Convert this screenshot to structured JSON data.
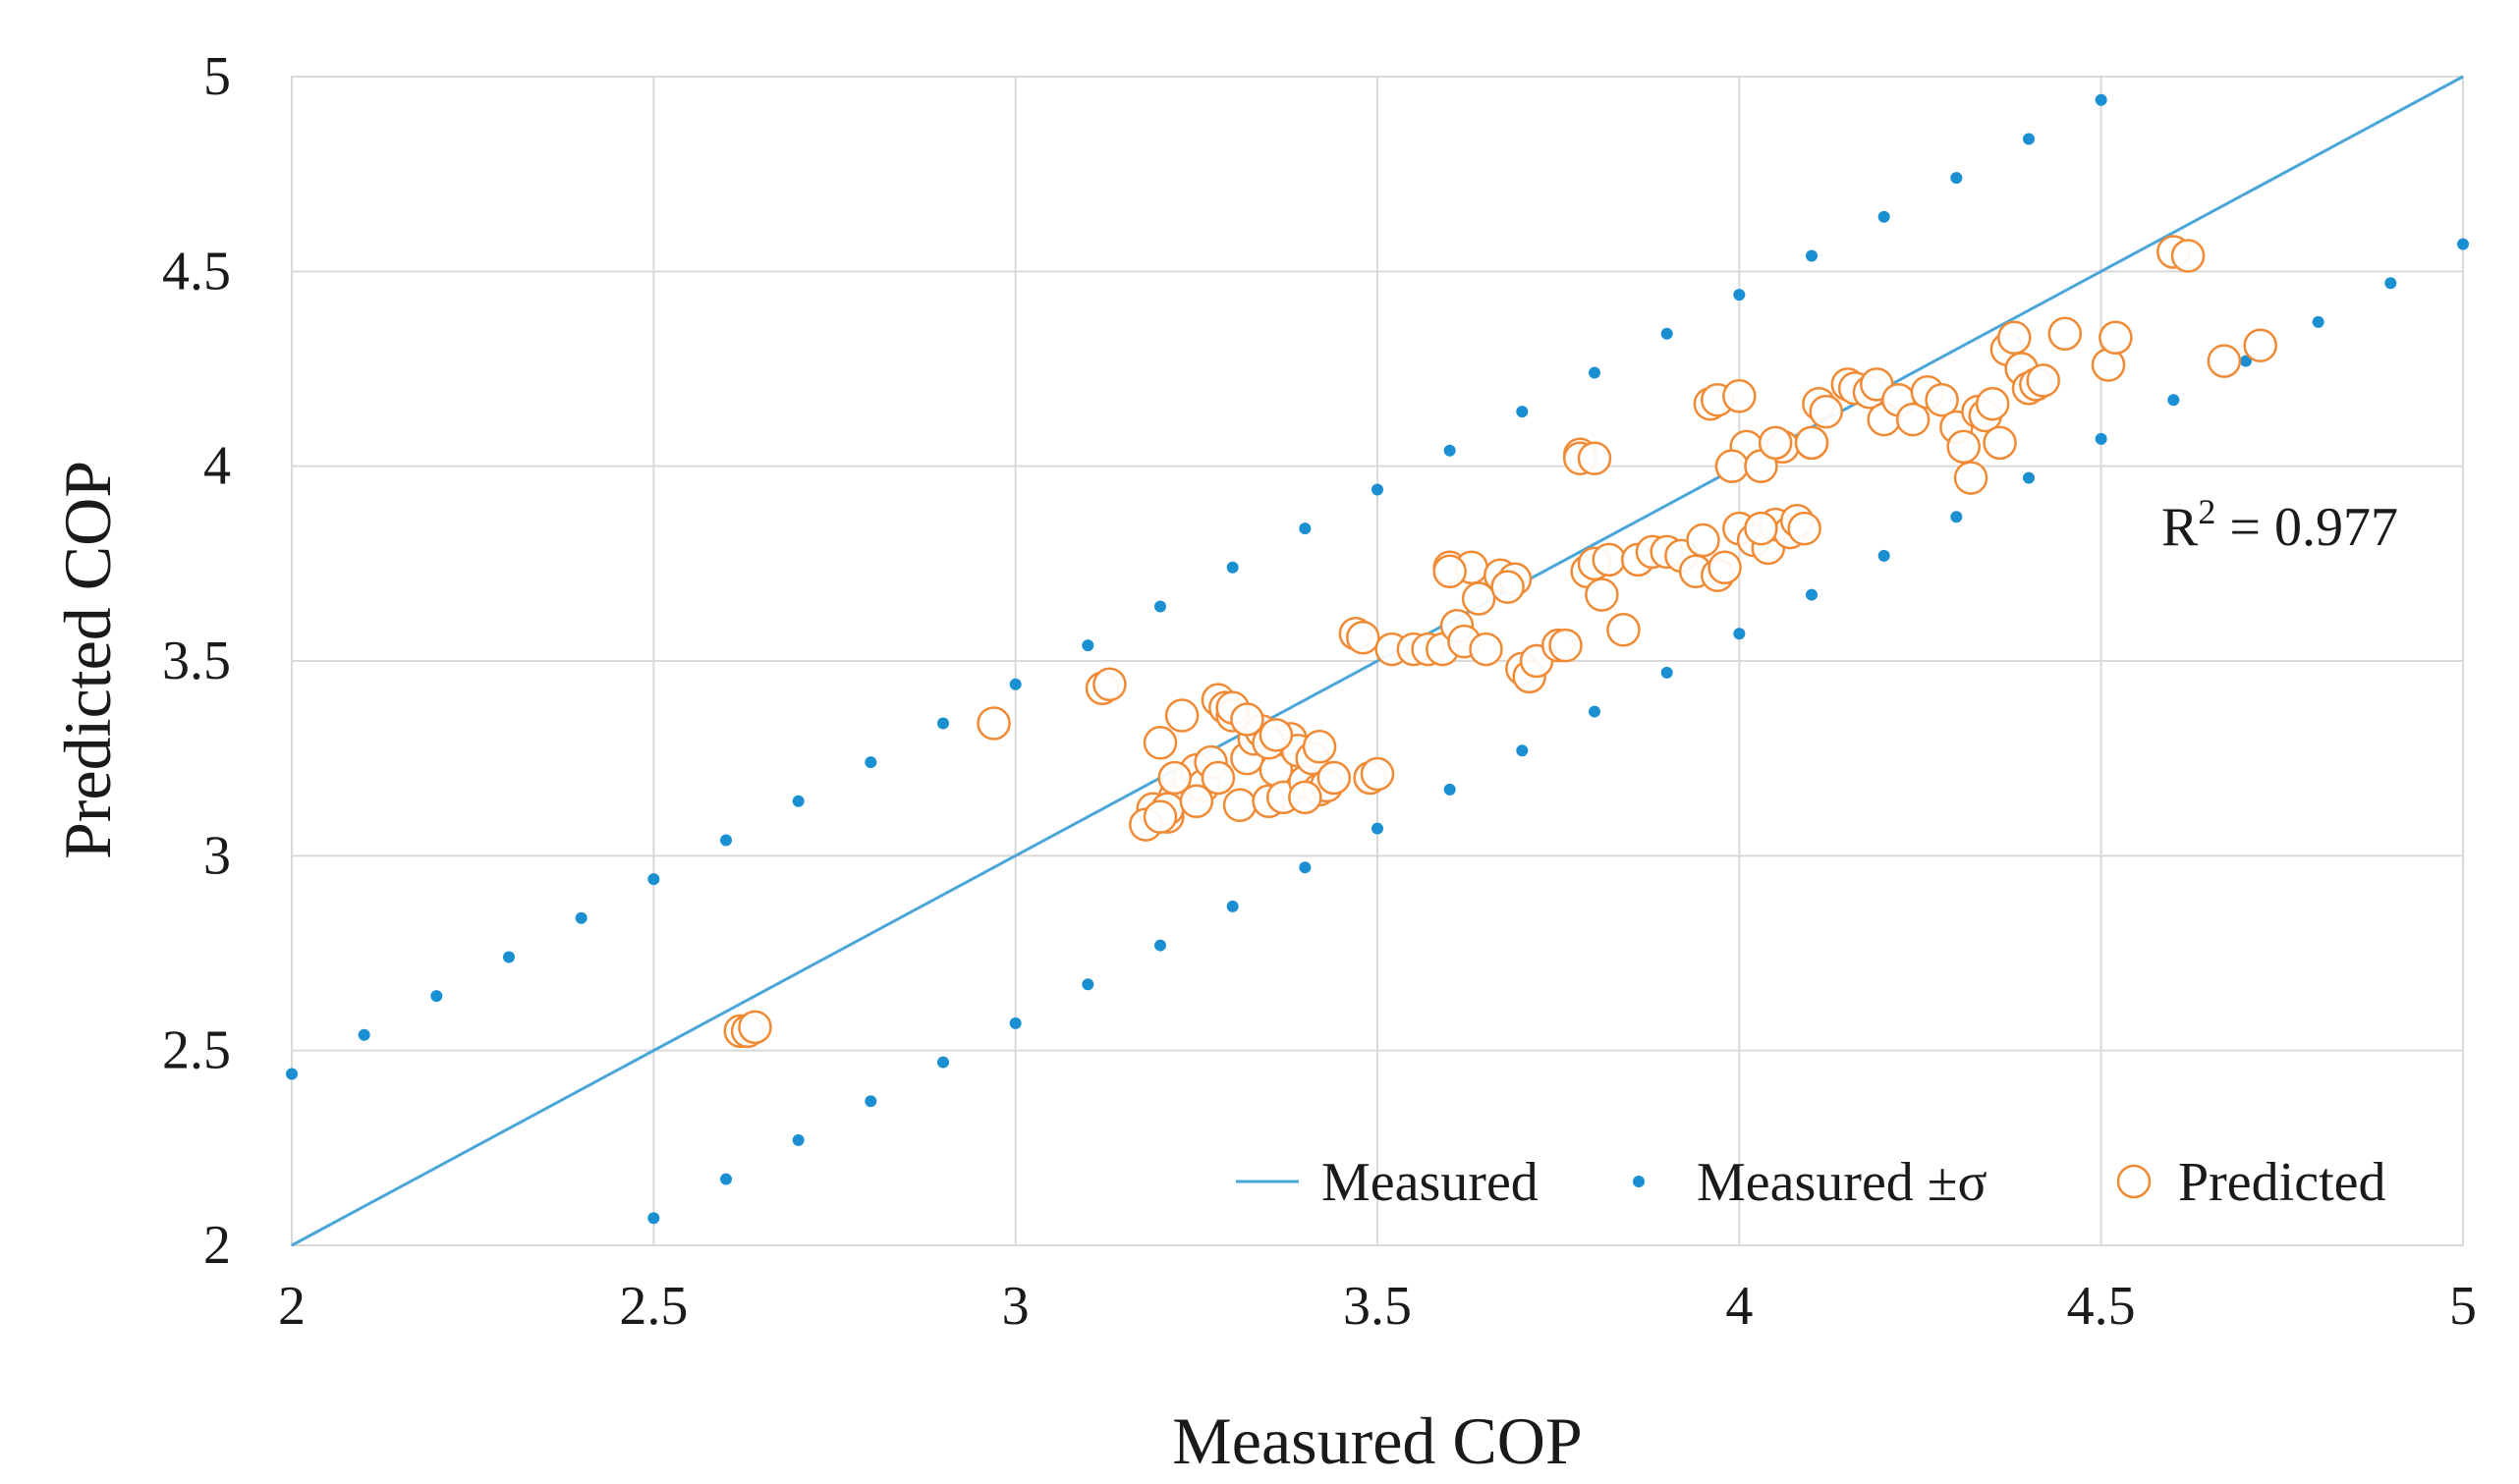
{
  "chart_data": {
    "type": "scatter",
    "title": "",
    "xlabel": "Measured COP",
    "ylabel": "Predicted COP",
    "xlim": [
      2,
      5
    ],
    "ylim": [
      2,
      5
    ],
    "xticks": [
      "2",
      "2.5",
      "3",
      "3.5",
      "4",
      "4.5",
      "5"
    ],
    "yticks": [
      "2",
      "2.5",
      "3",
      "3.5",
      "4",
      "4.5",
      "5"
    ],
    "grid": true,
    "legend_position": "bottom-right",
    "annotation": {
      "base": "R",
      "sup": "2",
      "rest": " = 0.977"
    },
    "colors": {
      "line": "#4aa6d9",
      "band": "#1a8fd1",
      "predicted": "#f08a34"
    },
    "series": [
      {
        "name": "Measured",
        "kind": "line",
        "x": [
          2,
          5
        ],
        "y": [
          2,
          5
        ]
      },
      {
        "name": "Measured ±σ",
        "kind": "dots",
        "upper": {
          "x": [
            2.0,
            2.1,
            2.2,
            2.3,
            2.4,
            2.5,
            2.6,
            2.7,
            2.8,
            2.9,
            3.0,
            3.1,
            3.2,
            3.3,
            3.4,
            3.5,
            3.6,
            3.7,
            3.8,
            3.9,
            4.0,
            4.1,
            4.2,
            4.3,
            4.4,
            4.5
          ],
          "y": [
            2.44,
            2.54,
            2.64,
            2.74,
            2.84,
            2.94,
            3.04,
            3.14,
            3.24,
            3.34,
            3.44,
            3.54,
            3.64,
            3.74,
            3.84,
            3.94,
            4.04,
            4.14,
            4.24,
            4.34,
            4.44,
            4.54,
            4.64,
            4.74,
            4.84,
            4.94
          ]
        },
        "lower": {
          "x": [
            2.5,
            2.6,
            2.7,
            2.8,
            2.9,
            3.0,
            3.1,
            3.2,
            3.3,
            3.4,
            3.5,
            3.6,
            3.7,
            3.8,
            3.9,
            4.0,
            4.1,
            4.2,
            4.3,
            4.4,
            4.5,
            4.6,
            4.7,
            4.8,
            4.9,
            5.0
          ],
          "y": [
            2.07,
            2.17,
            2.27,
            2.37,
            2.47,
            2.57,
            2.67,
            2.77,
            2.87,
            2.97,
            3.07,
            3.17,
            3.27,
            3.37,
            3.47,
            3.57,
            3.67,
            3.77,
            3.87,
            3.97,
            4.07,
            4.17,
            4.27,
            4.37,
            4.47,
            4.57
          ]
        }
      },
      {
        "name": "Predicted",
        "kind": "circles",
        "x": [
          2.62,
          2.63,
          2.64,
          2.97,
          3.12,
          3.13,
          3.19,
          3.2,
          3.21,
          3.22,
          3.23,
          3.24,
          3.25,
          3.26,
          3.27,
          3.28,
          3.29,
          3.3,
          3.31,
          3.32,
          3.33,
          3.34,
          3.35,
          3.36,
          3.37,
          3.38,
          3.39,
          3.4,
          3.41,
          3.42,
          3.43,
          3.44,
          3.47,
          3.48,
          3.49,
          3.5,
          3.52,
          3.55,
          3.57,
          3.59,
          3.6,
          3.61,
          3.62,
          3.63,
          3.65,
          3.67,
          3.69,
          3.7,
          3.71,
          3.72,
          3.75,
          3.76,
          3.78,
          3.79,
          3.8,
          3.81,
          3.82,
          3.84,
          3.86,
          3.88,
          3.9,
          3.92,
          3.94,
          3.95,
          3.96,
          3.97,
          3.98,
          3.99,
          4.0,
          4.01,
          4.02,
          4.03,
          4.04,
          4.05,
          4.06,
          4.07,
          4.08,
          4.09,
          4.1,
          4.11,
          4.12,
          4.15,
          4.16,
          4.18,
          4.19,
          4.2,
          4.22,
          4.24,
          4.26,
          4.28,
          4.3,
          4.31,
          4.32,
          4.33,
          4.34,
          4.35,
          4.36,
          4.37,
          4.38,
          4.39,
          4.4,
          4.41,
          4.42,
          4.45,
          4.51,
          4.52,
          4.6,
          4.62,
          4.67,
          4.72,
          3.97,
          3.99,
          4.0,
          4.03,
          4.05,
          4.1,
          4.03,
          3.78,
          3.8,
          3.6,
          3.64,
          3.68,
          3.21,
          3.3,
          3.35,
          3.22,
          3.18,
          3.2,
          3.25,
          3.28,
          3.32,
          3.36,
          3.4,
          3.42
        ],
        "y": [
          2.55,
          2.55,
          2.56,
          3.34,
          3.43,
          3.44,
          3.12,
          3.29,
          3.1,
          3.15,
          3.36,
          3.2,
          3.22,
          3.18,
          3.24,
          3.4,
          3.38,
          3.36,
          3.13,
          3.25,
          3.3,
          3.32,
          3.14,
          3.22,
          3.15,
          3.3,
          3.27,
          3.19,
          3.25,
          3.17,
          3.18,
          3.2,
          3.57,
          3.56,
          3.2,
          3.21,
          3.53,
          3.53,
          3.53,
          3.53,
          3.74,
          3.59,
          3.55,
          3.74,
          3.53,
          3.72,
          3.71,
          3.48,
          3.46,
          3.5,
          3.54,
          3.54,
          4.03,
          3.73,
          3.75,
          3.67,
          3.76,
          3.58,
          3.76,
          3.78,
          3.78,
          3.77,
          3.73,
          3.81,
          4.16,
          3.72,
          3.74,
          4.0,
          3.84,
          4.05,
          3.81,
          4.0,
          3.79,
          3.85,
          4.05,
          3.83,
          3.86,
          3.84,
          4.06,
          4.16,
          4.14,
          4.21,
          4.2,
          4.19,
          4.21,
          4.12,
          4.17,
          4.12,
          4.19,
          4.17,
          4.1,
          4.05,
          3.97,
          4.14,
          4.13,
          4.16,
          4.06,
          4.3,
          4.33,
          4.25,
          4.2,
          4.21,
          4.22,
          4.34,
          4.26,
          4.33,
          4.55,
          4.54,
          4.27,
          4.31,
          4.17,
          4.0,
          4.18,
          4.0,
          4.06,
          4.06,
          3.84,
          4.02,
          4.02,
          3.73,
          3.66,
          3.69,
          3.12,
          3.38,
          3.29,
          3.2,
          3.08,
          3.1,
          3.14,
          3.2,
          3.35,
          3.31,
          3.15,
          3.28
        ]
      }
    ]
  }
}
